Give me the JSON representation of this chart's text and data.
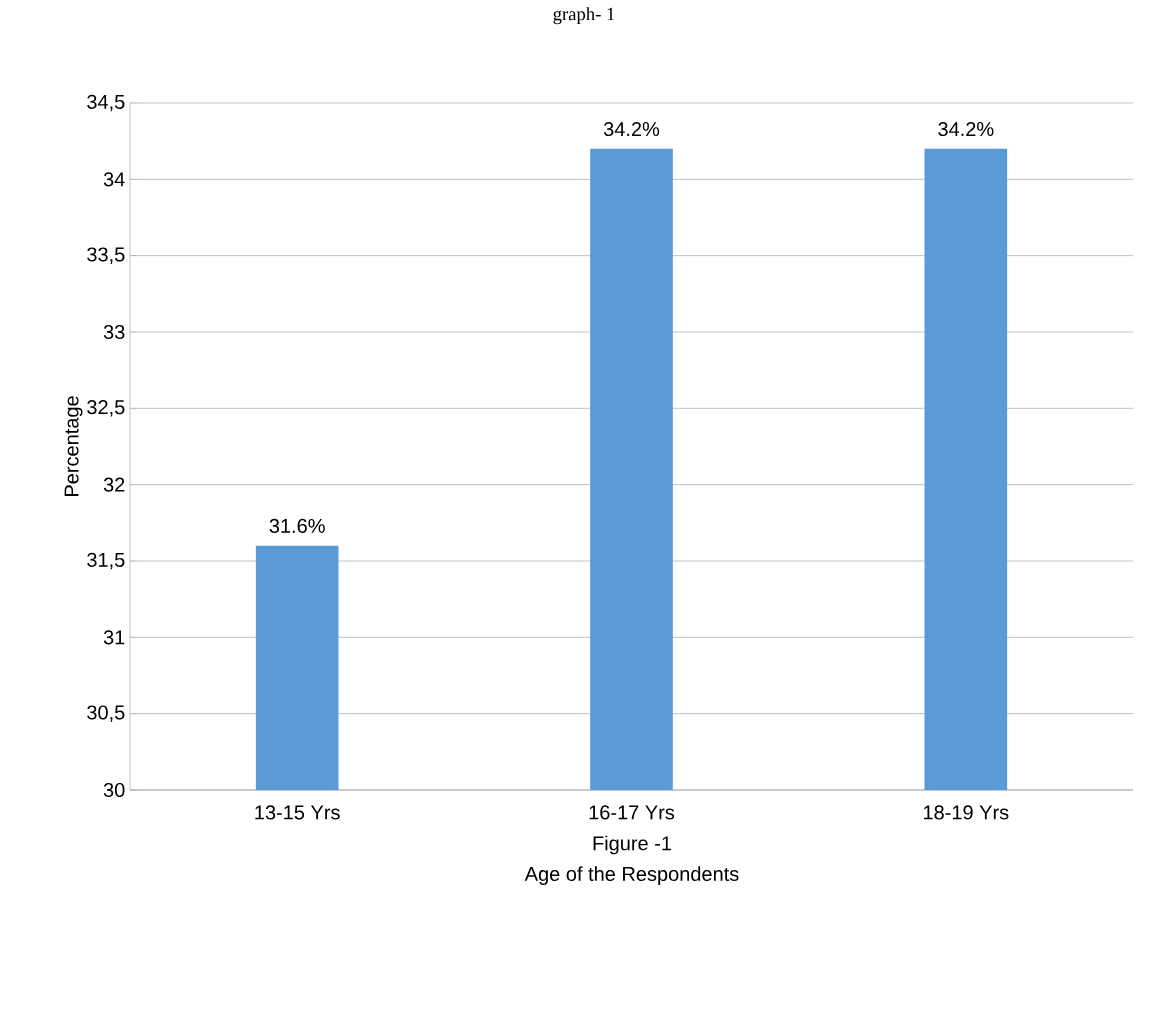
{
  "chart_data": {
    "type": "bar",
    "title": "graph- 1",
    "ylabel": "Percentage",
    "categories": [
      "13-15 Yrs",
      "16-17 Yrs",
      "18-19 Yrs"
    ],
    "values": [
      31.6,
      34.2,
      34.2
    ],
    "color": "#5b9bd5",
    "value_labels": [
      "31.6%",
      "34.2%",
      "34.2%"
    ],
    "ylim": [
      30,
      34.5
    ],
    "yticks": [
      30,
      {
        "value": 30.5,
        "label": "30,5"
      },
      31,
      {
        "value": 31.5,
        "label": "31,5"
      },
      32,
      {
        "value": 32.5,
        "label": "32,5"
      },
      33,
      {
        "value": 33.5,
        "label": "33,5"
      },
      34,
      {
        "value": 34.5,
        "label": "34,5"
      }
    ],
    "grid": "y",
    "annotations": [
      "Figure -1",
      "Age of the Respondents"
    ]
  }
}
